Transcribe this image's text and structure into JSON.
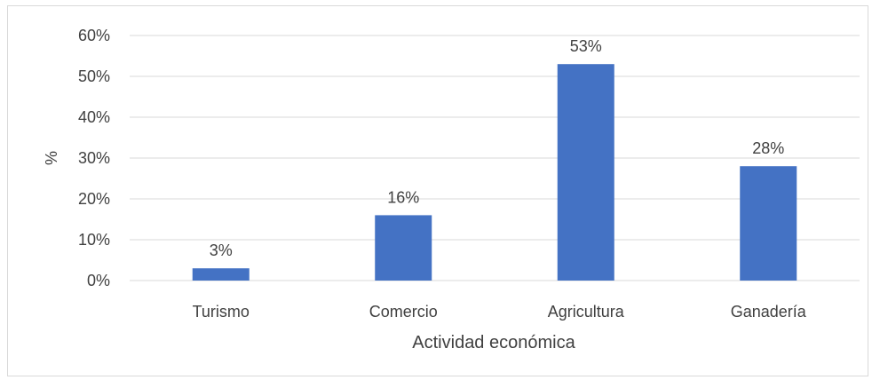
{
  "chart_data": {
    "type": "bar",
    "title": "",
    "xlabel": "Actividad económica",
    "ylabel": "%",
    "categories": [
      "Turismo",
      "Comercio",
      "Agricultura",
      "Ganadería"
    ],
    "values": [
      3,
      16,
      53,
      28
    ],
    "data_labels": [
      "3%",
      "16%",
      "53%",
      "28%"
    ],
    "ylim": [
      0,
      60
    ],
    "y_ticks": [
      0,
      10,
      20,
      30,
      40,
      50,
      60
    ],
    "y_tick_labels": [
      "0%",
      "10%",
      "20%",
      "30%",
      "40%",
      "50%",
      "60%"
    ],
    "grid": true,
    "legend": "none",
    "colors": {
      "bar": "#4472C4",
      "grid": "#d9d9d9",
      "text": "#404040"
    }
  }
}
